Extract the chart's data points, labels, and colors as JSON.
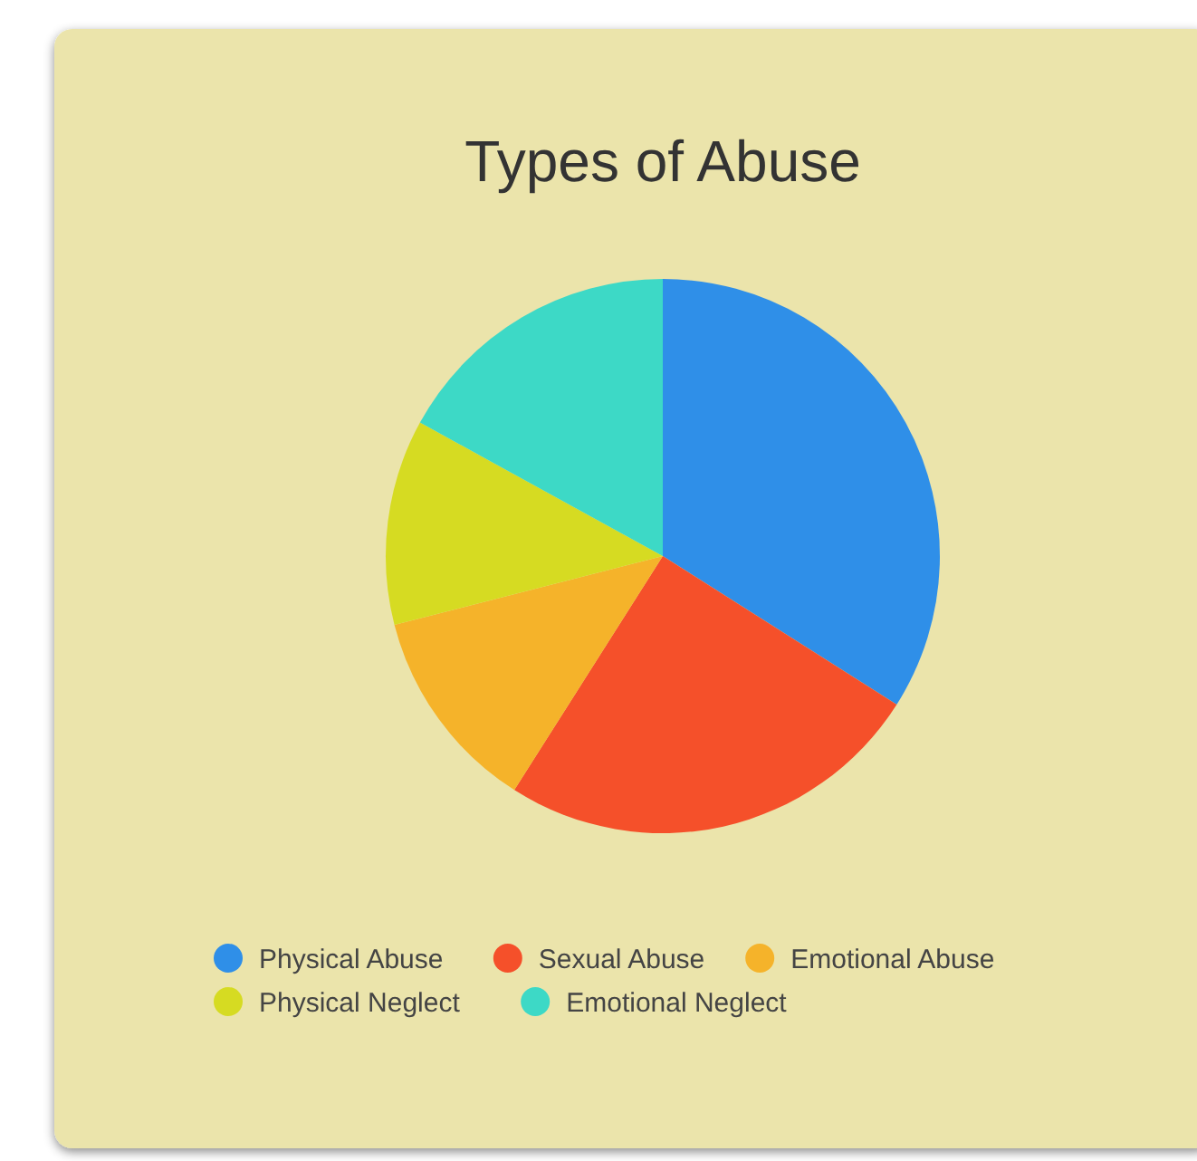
{
  "chart_data": {
    "type": "pie",
    "title": "Types of Abuse",
    "categories": [
      "Physical Abuse",
      "Sexual Abuse",
      "Emotional Abuse",
      "Physical Neglect",
      "Emotional Neglect"
    ],
    "values": [
      34,
      25,
      12,
      12,
      17
    ],
    "colors": [
      "#2f8fe8",
      "#f5502a",
      "#f5b32a",
      "#d6db22",
      "#3dd9c6"
    ],
    "legend": "bottom"
  }
}
